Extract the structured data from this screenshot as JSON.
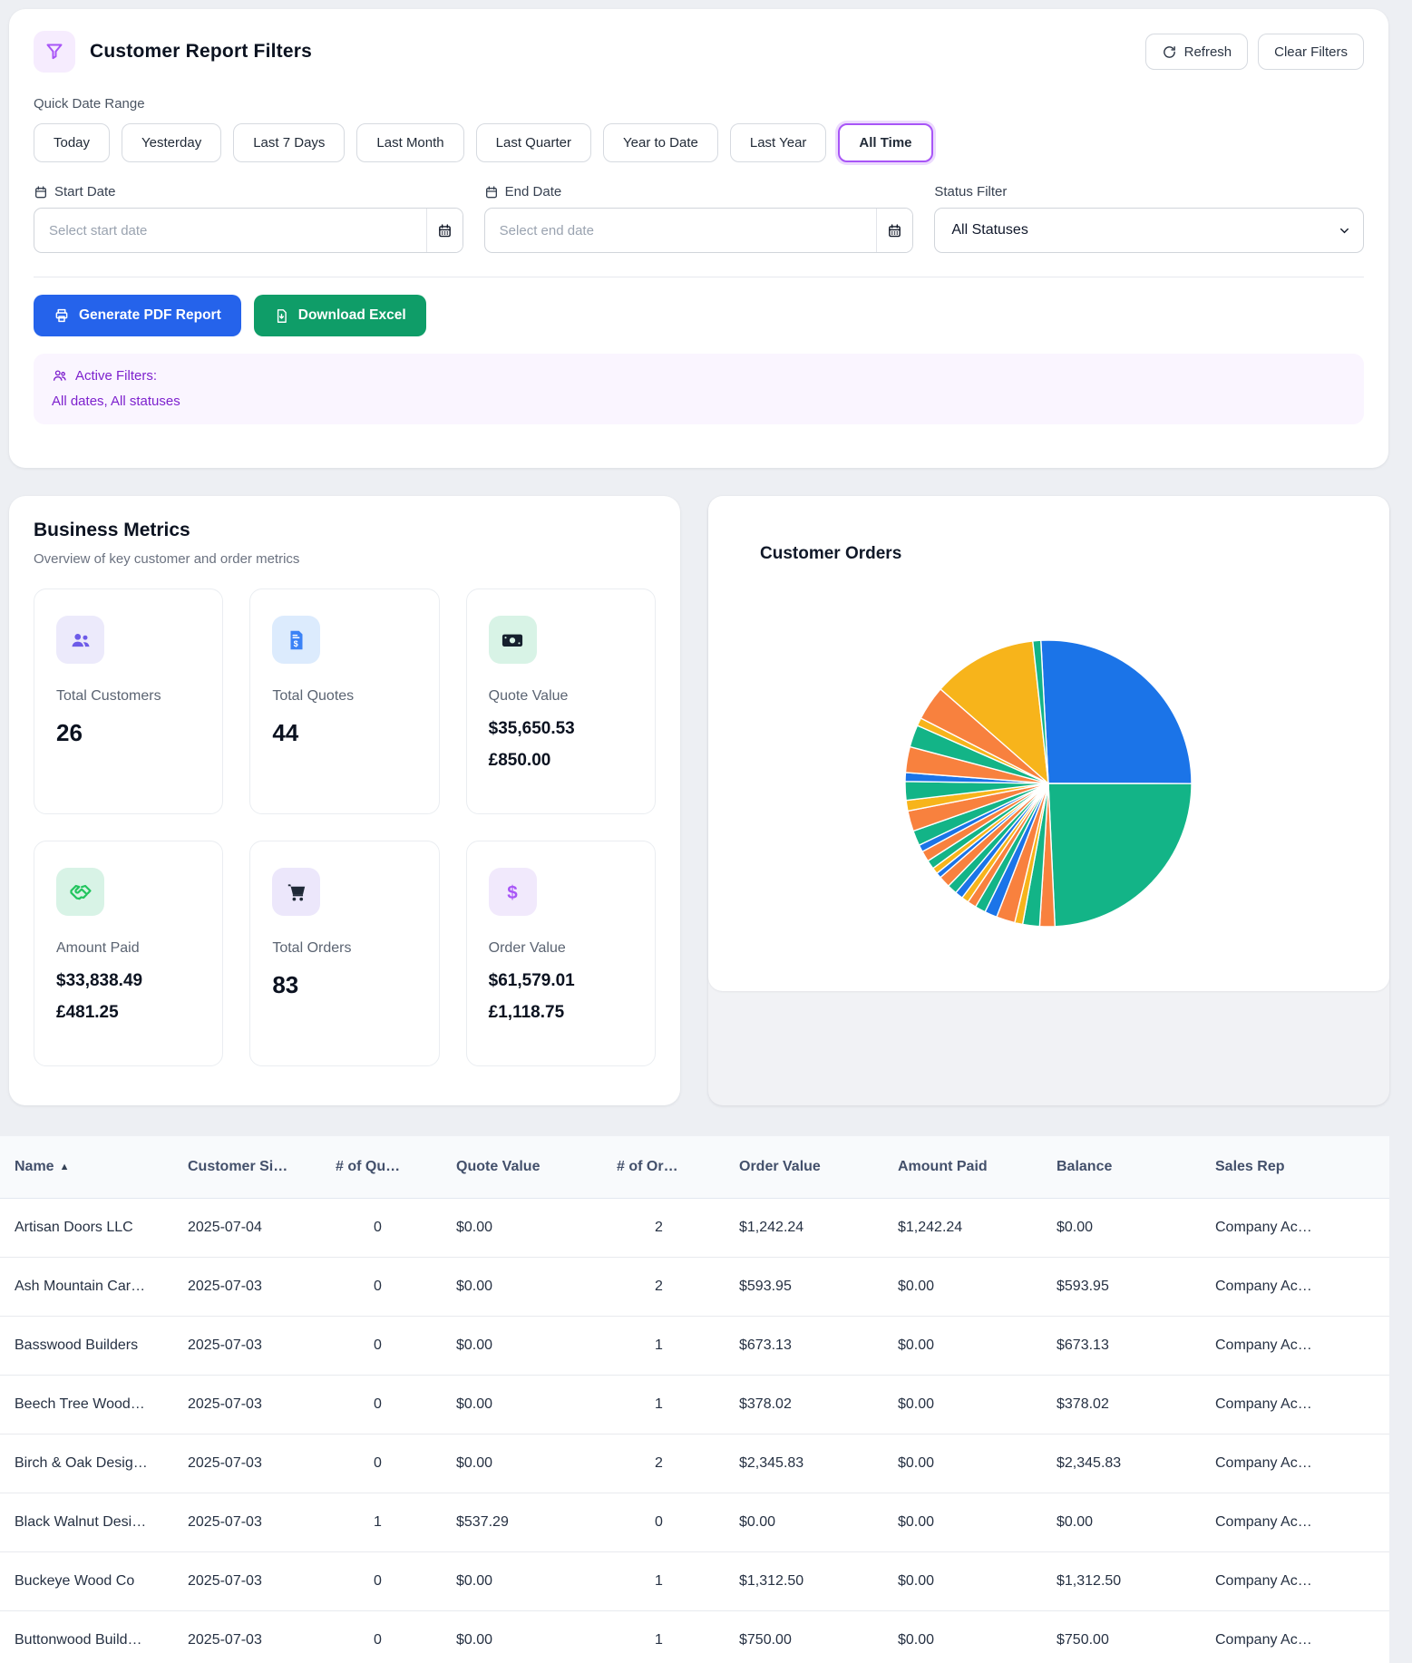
{
  "filters": {
    "title": "Customer Report Filters",
    "refresh_label": "Refresh",
    "clear_label": "Clear Filters",
    "quick_date_label": "Quick Date Range",
    "quick_ranges": [
      "Today",
      "Yesterday",
      "Last 7 Days",
      "Last Month",
      "Last Quarter",
      "Year to Date",
      "Last Year",
      "All Time"
    ],
    "active_range": "All Time",
    "start_date_label": "Start Date",
    "end_date_label": "End Date",
    "status_label": "Status Filter",
    "start_placeholder": "Select start date",
    "end_placeholder": "Select end date",
    "status_value": "All Statuses",
    "pdf_button": "Generate PDF Report",
    "excel_button": "Download Excel",
    "active_filters_label": "Active Filters:",
    "active_filters_value": "All dates, All statuses",
    "accent_purple": "#a855f7",
    "pdf_blue": "#2563eb",
    "excel_green": "#0f9d68"
  },
  "metrics": {
    "title": "Business Metrics",
    "subtitle": "Overview of key customer and order metrics",
    "cards": [
      {
        "label": "Total Customers",
        "values": [
          "26"
        ],
        "icon": "users-icon",
        "icon_color": "#6d5be8",
        "icon_bg": "#eceafb"
      },
      {
        "label": "Total Quotes",
        "values": [
          "44"
        ],
        "icon": "quote-file-icon",
        "icon_color": "#3b82f6",
        "icon_bg": "#dcebfd"
      },
      {
        "label": "Quote Value",
        "values": [
          "$35,650.53",
          "£850.00"
        ],
        "icon": "money-bill-icon",
        "icon_color": "#16202e",
        "icon_bg": "#d8f3e6"
      },
      {
        "label": "Amount Paid",
        "values": [
          "$33,838.49",
          "£481.25"
        ],
        "icon": "handshake-icon",
        "icon_color": "#22c55e",
        "icon_bg": "#d8f3e6"
      },
      {
        "label": "Total Orders",
        "values": [
          "83"
        ],
        "icon": "cart-icon",
        "icon_color": "#1f2937",
        "icon_bg": "#ece7fb"
      },
      {
        "label": "Order Value",
        "values": [
          "$61,579.01",
          "£1,118.75"
        ],
        "icon": "dollar-icon",
        "icon_color": "#a855f7",
        "icon_bg": "#f1e9fc"
      }
    ]
  },
  "chart_data": {
    "type": "pie",
    "title": "Customer Orders",
    "legend_position": "none",
    "start_angle_deg": -93,
    "slices": [
      {
        "value": 25.8,
        "color": "#1b74e8"
      },
      {
        "value": 24.2,
        "color": "#13b487"
      },
      {
        "value": 1.7,
        "color": "#f8813e"
      },
      {
        "value": 1.9,
        "color": "#13b487"
      },
      {
        "value": 0.9,
        "color": "#f7b41b"
      },
      {
        "value": 2.1,
        "color": "#f8813e"
      },
      {
        "value": 1.4,
        "color": "#1b74e8"
      },
      {
        "value": 1.2,
        "color": "#13b487"
      },
      {
        "value": 1.0,
        "color": "#f8813e"
      },
      {
        "value": 0.8,
        "color": "#f7b41b"
      },
      {
        "value": 0.9,
        "color": "#1b74e8"
      },
      {
        "value": 1.1,
        "color": "#13b487"
      },
      {
        "value": 1.3,
        "color": "#f8813e"
      },
      {
        "value": 0.6,
        "color": "#1b74e8"
      },
      {
        "value": 0.7,
        "color": "#f7b41b"
      },
      {
        "value": 1.0,
        "color": "#13b487"
      },
      {
        "value": 1.2,
        "color": "#f8813e"
      },
      {
        "value": 0.8,
        "color": "#1b74e8"
      },
      {
        "value": 1.7,
        "color": "#13b487"
      },
      {
        "value": 2.3,
        "color": "#f8813e"
      },
      {
        "value": 1.2,
        "color": "#f7b41b"
      },
      {
        "value": 2.1,
        "color": "#13b487"
      },
      {
        "value": 1.0,
        "color": "#1b74e8"
      },
      {
        "value": 2.9,
        "color": "#f8813e"
      },
      {
        "value": 2.5,
        "color": "#13b487"
      },
      {
        "value": 0.9,
        "color": "#f7b41b"
      },
      {
        "value": 3.9,
        "color": "#f8813e"
      },
      {
        "value": 11.8,
        "color": "#f7b41b"
      },
      {
        "value": 0.9,
        "color": "#13b487"
      }
    ]
  },
  "table": {
    "columns": [
      {
        "label": "Name",
        "sort": "▲"
      },
      {
        "label": "Customer Si…"
      },
      {
        "label": "# of Qu…",
        "num": true
      },
      {
        "label": "Quote Value"
      },
      {
        "label": "# of Or…",
        "num": true
      },
      {
        "label": "Order Value"
      },
      {
        "label": "Amount Paid"
      },
      {
        "label": "Balance"
      },
      {
        "label": "Sales Rep"
      }
    ],
    "rows": [
      [
        "Artisan Doors LLC",
        "2025-07-04",
        "0",
        "$0.00",
        "2",
        "$1,242.24",
        "$1,242.24",
        "$0.00",
        "Company Ac…"
      ],
      [
        "Ash Mountain Car…",
        "2025-07-03",
        "0",
        "$0.00",
        "2",
        "$593.95",
        "$0.00",
        "$593.95",
        "Company Ac…"
      ],
      [
        "Basswood Builders",
        "2025-07-03",
        "0",
        "$0.00",
        "1",
        "$673.13",
        "$0.00",
        "$673.13",
        "Company Ac…"
      ],
      [
        "Beech Tree Wood…",
        "2025-07-03",
        "0",
        "$0.00",
        "1",
        "$378.02",
        "$0.00",
        "$378.02",
        "Company Ac…"
      ],
      [
        "Birch & Oak Desig…",
        "2025-07-03",
        "0",
        "$0.00",
        "2",
        "$2,345.83",
        "$0.00",
        "$2,345.83",
        "Company Ac…"
      ],
      [
        "Black Walnut Desi…",
        "2025-07-03",
        "1",
        "$537.29",
        "0",
        "$0.00",
        "$0.00",
        "$0.00",
        "Company Ac…"
      ],
      [
        "Buckeye Wood Co",
        "2025-07-03",
        "0",
        "$0.00",
        "1",
        "$1,312.50",
        "$0.00",
        "$1,312.50",
        "Company Ac…"
      ],
      [
        "Buttonwood Build…",
        "2025-07-03",
        "0",
        "$0.00",
        "1",
        "$750.00",
        "$0.00",
        "$750.00",
        "Company Ac…"
      ]
    ]
  }
}
